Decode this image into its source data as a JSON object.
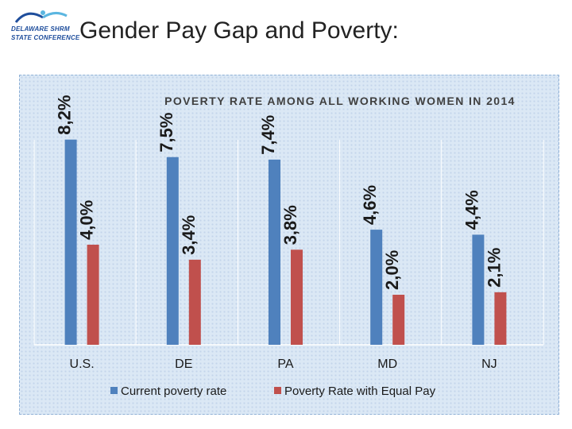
{
  "page": {
    "title": "Gender Pay Gap and Poverty:",
    "logo_lines": [
      "DELAWARE",
      "SHRM",
      "STATE CONFERENCE"
    ]
  },
  "colors": {
    "series1": "#4f81bd",
    "series2": "#c0504d",
    "panel": "#dbe8f5"
  },
  "chart_data": {
    "type": "bar",
    "title": "POVERTY RATE AMONG ALL WORKING WOMEN IN 2014",
    "categories": [
      "U.S.",
      "DE",
      "PA",
      "MD",
      "NJ"
    ],
    "series": [
      {
        "name": "Current poverty rate",
        "values": [
          8.2,
          7.5,
          7.4,
          4.6,
          4.4
        ],
        "labels": [
          "8,2%",
          "7,5%",
          "7,4%",
          "4,6%",
          "4,4%"
        ]
      },
      {
        "name": "Poverty Rate with Equal Pay",
        "values": [
          4.0,
          3.4,
          3.8,
          2.0,
          2.1
        ],
        "labels": [
          "4,0%",
          "3,4%",
          "3,8%",
          "2,0%",
          "2,1%"
        ]
      }
    ],
    "xlabel": "",
    "ylabel": "",
    "ylim": [
      0,
      9
    ],
    "legend": "bottom",
    "grid": "vertical"
  }
}
